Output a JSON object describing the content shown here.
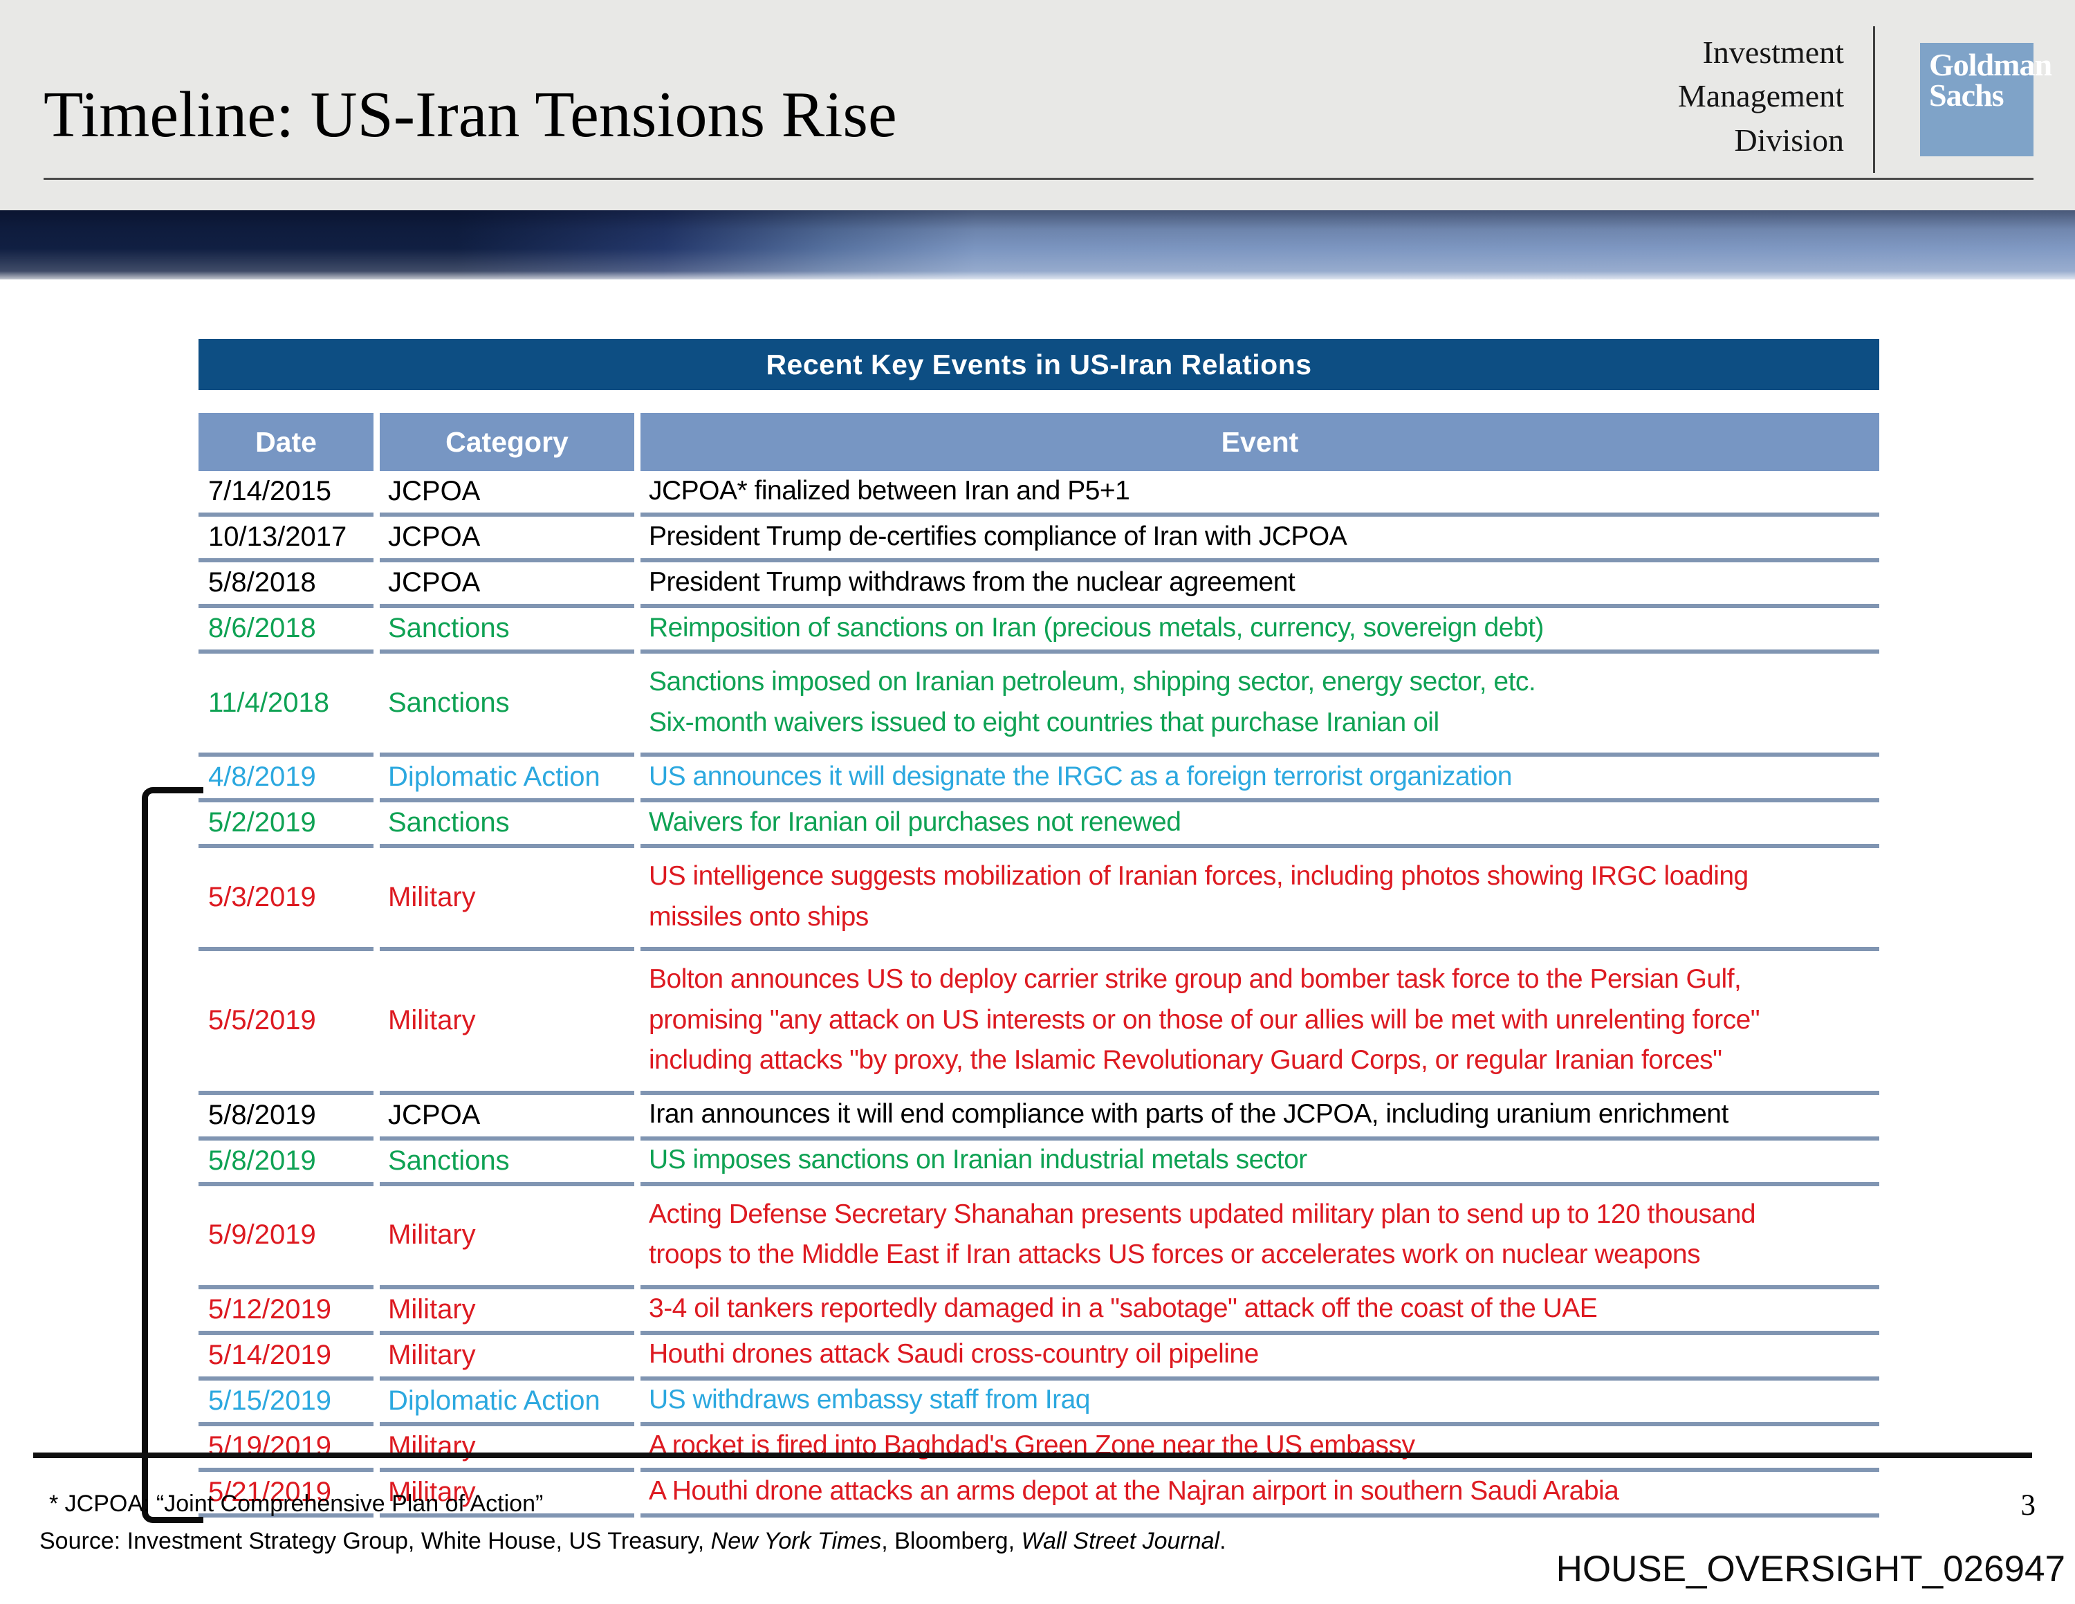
{
  "slide": {
    "title": "Timeline: US-Iran Tensions Rise",
    "division_lines": [
      "Investment",
      "Management",
      "Division"
    ],
    "logo": {
      "line1": "Goldman",
      "line2": "Sachs"
    },
    "page_number": "3",
    "watermark": "HOUSE_OVERSIGHT_026947"
  },
  "table": {
    "title": "Recent Key Events in US-Iran Relations",
    "columns": [
      "Date",
      "Category",
      "Event"
    ],
    "rows": [
      {
        "date": "7/14/2015",
        "category": "JCPOA",
        "color": "black",
        "event": "JCPOA* finalized between Iran and P5+1"
      },
      {
        "date": "10/13/2017",
        "category": "JCPOA",
        "color": "black",
        "event": "President Trump de-certifies compliance of Iran with JCPOA"
      },
      {
        "date": "5/8/2018",
        "category": "JCPOA",
        "color": "black",
        "event": "President Trump withdraws from the nuclear agreement"
      },
      {
        "date": "8/6/2018",
        "category": "Sanctions",
        "color": "green",
        "event": "Reimposition of sanctions on Iran (precious metals, currency, sovereign debt)"
      },
      {
        "date": "11/4/2018",
        "category": "Sanctions",
        "color": "green",
        "event": "Sanctions imposed on Iranian petroleum, shipping sector, energy sector, etc.\nSix-month waivers issued to eight countries that purchase Iranian oil"
      },
      {
        "date": "4/8/2019",
        "category": "Diplomatic Action",
        "color": "blue",
        "event": "US announces it will designate the IRGC as a foreign terrorist organization"
      },
      {
        "date": "5/2/2019",
        "category": "Sanctions",
        "color": "green",
        "event": "Waivers for Iranian oil purchases not renewed"
      },
      {
        "date": "5/3/2019",
        "category": "Military",
        "color": "red",
        "event": "US intelligence suggests mobilization of Iranian forces, including photos showing IRGC loading\nmissiles onto ships"
      },
      {
        "date": "5/5/2019",
        "category": "Military",
        "color": "red",
        "event": "Bolton announces US to deploy carrier strike group and bomber task force to the Persian Gulf,\npromising \"any attack on US interests or on those of our allies will be met with unrelenting force\"\nincluding attacks \"by proxy, the Islamic Revolutionary Guard Corps, or regular Iranian forces\""
      },
      {
        "date": "5/8/2019",
        "category": "JCPOA",
        "color": "black",
        "event": "Iran announces it will end compliance with parts of the JCPOA, including uranium enrichment"
      },
      {
        "date": "5/8/2019",
        "category": "Sanctions",
        "color": "green",
        "event": "US imposes sanctions on Iranian industrial metals sector"
      },
      {
        "date": "5/9/2019",
        "category": "Military",
        "color": "red",
        "event": "Acting Defense Secretary Shanahan presents updated military plan to send up to 120 thousand\ntroops to the Middle East if Iran attacks US forces or accelerates work on nuclear weapons"
      },
      {
        "date": "5/12/2019",
        "category": "Military",
        "color": "red",
        "event": "3-4 oil tankers reportedly damaged in a \"sabotage\" attack off the coast of the UAE"
      },
      {
        "date": "5/14/2019",
        "category": "Military",
        "color": "red",
        "event": "Houthi drones attack Saudi cross-country oil pipeline"
      },
      {
        "date": "5/15/2019",
        "category": "Diplomatic Action",
        "color": "blue",
        "event": "US withdraws embassy staff from Iraq"
      },
      {
        "date": "5/19/2019",
        "category": "Military",
        "color": "red",
        "event": "A rocket is fired into Baghdad's Green Zone near the US embassy"
      },
      {
        "date": "5/21/2019",
        "category": "Military",
        "color": "red",
        "event": "A Houthi drone attacks an arms depot at the Najran airport in southern Saudi Arabia"
      }
    ],
    "bracket_start_date": "5/2/2019",
    "bracket_end_date": "5/21/2019"
  },
  "footnotes": {
    "jcpoa_note": "* JCPOA: “Joint Comprehensive Plan of Action”",
    "source_segments": [
      {
        "text": "Source: Investment Strategy Group, White House, US Treasury, ",
        "italic": false
      },
      {
        "text": "New York Times",
        "italic": true
      },
      {
        "text": ", Bloomberg, ",
        "italic": false
      },
      {
        "text": "Wall Street Journal",
        "italic": true
      },
      {
        "text": ".",
        "italic": false
      }
    ]
  },
  "colors": {
    "c-band": "#e8e8e6",
    "c-logo": "#7fa3c8",
    "c-grad-navy": "#101f42",
    "c-grad-steel": "#7b95c0",
    "c-title-bar": "#0d4e83",
    "c-header": "#7796c3",
    "c-sep": "#8095b2",
    "category-black": "#000000",
    "category-green": "#0fa254",
    "category-red": "#dd1a21",
    "category-blue": "#2ca8df"
  }
}
